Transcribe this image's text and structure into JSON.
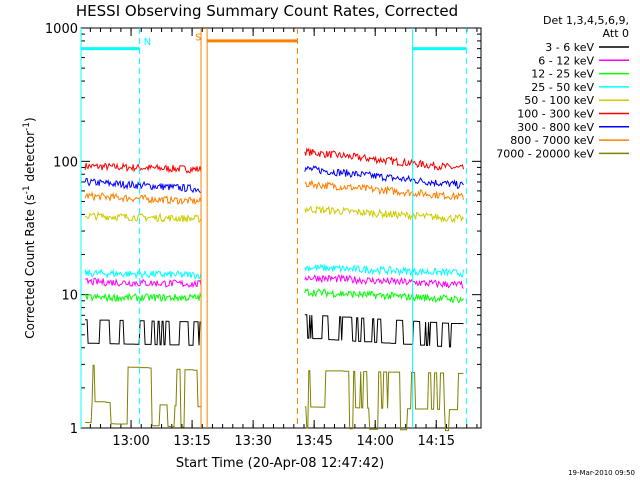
{
  "chart_data": {
    "type": "line",
    "title": "HESSI Observing Summary Count Rates, Corrected",
    "xlabel": "Start Time (20-Apr-08 12:47:42)",
    "ylabel": "Corrected Count Rate (s",
    "ylabel_sup1": "-1",
    "ylabel_mid": " detector",
    "ylabel_sup2": "-1",
    "ylabel_end": ")",
    "x_unit": "minutes since 12:47:42",
    "xlim": [
      0,
      98.3
    ],
    "ylim": [
      1,
      1000
    ],
    "y_scale": "log",
    "x_ticks": [
      {
        "label": "13:00",
        "value": 12.3
      },
      {
        "label": "13:15",
        "value": 27.3
      },
      {
        "label": "13:30",
        "value": 42.3
      },
      {
        "label": "13:45",
        "value": 57.3
      },
      {
        "label": "14:00",
        "value": 72.3
      },
      {
        "label": "14:15",
        "value": 87.3
      }
    ],
    "y_ticks": [
      {
        "label": "1",
        "value": 1
      },
      {
        "label": "10",
        "value": 10
      },
      {
        "label": "100",
        "value": 100
      },
      {
        "label": "1000",
        "value": 1000
      }
    ],
    "grid": false,
    "legend_header": [
      "Det 1,3,4,5,6,9,",
      "Att 0"
    ],
    "legend_position": "right",
    "series": [
      {
        "name": "3 - 6 keV",
        "color": "#000000",
        "segments": [
          [
            1,
            5.4,
            29.5,
            5.2,
            "step"
          ],
          [
            55,
            5.9,
            94,
            5.0,
            "step"
          ]
        ]
      },
      {
        "name": "6 - 12 keV",
        "color": "#ff00ff",
        "segments": [
          [
            1,
            12.5,
            29.5,
            12,
            "noise"
          ],
          [
            55,
            13.5,
            94,
            11.8,
            "noise"
          ]
        ]
      },
      {
        "name": "12 - 25 keV",
        "color": "#00ff00",
        "segments": [
          [
            1,
            9.5,
            29.5,
            9.5,
            "noise"
          ],
          [
            55,
            10.5,
            94,
            9.2,
            "noise"
          ]
        ]
      },
      {
        "name": "25 - 50 keV",
        "color": "#00ffff",
        "segments": [
          [
            1,
            14.5,
            29.5,
            14,
            "noise"
          ],
          [
            55,
            16,
            94,
            14.5,
            "noise"
          ]
        ]
      },
      {
        "name": "50 - 100 keV",
        "color": "#cccc00",
        "segments": [
          [
            1,
            39,
            29.5,
            37,
            "noise"
          ],
          [
            55,
            44,
            94,
            37,
            "noise"
          ]
        ]
      },
      {
        "name": "100 - 300 keV",
        "color": "#ff0000",
        "segments": [
          [
            1,
            92,
            29.5,
            87,
            "noise"
          ],
          [
            55,
            118,
            94,
            88,
            "noise"
          ]
        ]
      },
      {
        "name": "300 - 800 keV",
        "color": "#0000ff",
        "segments": [
          [
            1,
            70,
            29.5,
            62,
            "noise"
          ],
          [
            55,
            88,
            94,
            66,
            "noise"
          ]
        ]
      },
      {
        "name": "800 - 7000 keV",
        "color": "#ff8000",
        "segments": [
          [
            1,
            55,
            29.5,
            50,
            "noise"
          ],
          [
            55,
            68,
            94,
            54,
            "noise"
          ]
        ]
      },
      {
        "name": "7000 - 20000 keV",
        "color": "#808000",
        "segments": [
          [
            1,
            2.2,
            29.5,
            2.0,
            "step2"
          ],
          [
            55,
            2.0,
            94,
            1.9,
            "step2"
          ]
        ]
      }
    ],
    "annotations": [
      {
        "kind": "night_bar",
        "x1": 0,
        "x2": 14.4,
        "y": 700,
        "color": "#00ffff"
      },
      {
        "kind": "night_bar",
        "x1": 81.5,
        "x2": 94.7,
        "y": 700,
        "color": "#00ffff"
      },
      {
        "kind": "saa_bar",
        "x1": 31,
        "x2": 53.2,
        "y": 800,
        "color": "#ff8000"
      },
      {
        "kind": "vline",
        "x": 0,
        "color": "#00ffff",
        "dash": false
      },
      {
        "kind": "vline",
        "x": 14.4,
        "color": "#00ffff",
        "dash": true
      },
      {
        "kind": "vline",
        "x": 81.5,
        "color": "#00ffff",
        "dash": false
      },
      {
        "kind": "vline",
        "x": 94.7,
        "color": "#00ffff",
        "dash": true
      },
      {
        "kind": "vline",
        "x": 29.5,
        "color": "#ff8000",
        "dash": false
      },
      {
        "kind": "vline",
        "x": 31,
        "color": "#ff8000",
        "dash": false
      },
      {
        "kind": "vline",
        "x": 53.2,
        "color": "#ff8000",
        "dash": true
      }
    ],
    "markers": [
      {
        "text": "N",
        "x": 16.3,
        "y": 800,
        "color": "#00ffff"
      },
      {
        "text": "S",
        "x": 28.8,
        "y": 860,
        "color": "#ff8000"
      }
    ],
    "footer": "19-Mar-2010 09:50"
  }
}
